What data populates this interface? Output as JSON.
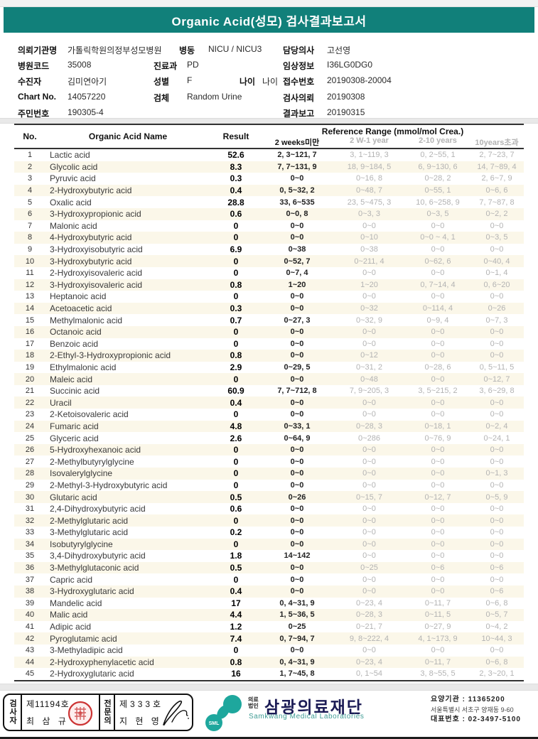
{
  "colors": {
    "teal": "#11807a",
    "logo-teal": "#1ea79d",
    "navy": "#1b1b55",
    "seal-red": "#cc3333",
    "row-alt": "#fbf7e9",
    "gray-txt": "#b3b3b3"
  },
  "title": "Organic Acid(성모) 검사결과보고서",
  "patient": {
    "fields": [
      {
        "label": "의뢰기관명",
        "value": "가톨릭학원의정부성모병원"
      },
      {
        "label": "병동",
        "value": "NICU / NICU3"
      },
      {
        "label": "담당의사",
        "value": "고선영"
      },
      {
        "label": "병원코드",
        "value": "35008"
      },
      {
        "label": "진료과",
        "value": "PD"
      },
      {
        "label": "임상정보",
        "value": "I36LG0DG0"
      },
      {
        "label": "수진자",
        "value": "김미연아기"
      },
      {
        "label": "성별",
        "value": "F"
      },
      {
        "label": "나이",
        "value": "나이"
      },
      {
        "label": "접수번호",
        "value": "20190308-20004"
      },
      {
        "label": "Chart No.",
        "value": "14057220"
      },
      {
        "label": "검체",
        "value": "Random Urine"
      },
      {
        "label": "검사의뢰",
        "value": "20190308"
      },
      {
        "label": "주민번호",
        "value": "190305-4"
      },
      {
        "label": "결과보고",
        "value": "20190315"
      }
    ]
  },
  "table": {
    "headers": {
      "no": "No.",
      "name": "Organic Acid Name",
      "result": "Result",
      "ref_title": "Reference Range (mmol/mol Crea.)",
      "sub1": "2 weeks미만",
      "sub2": "2 W-1 year",
      "sub3": "2-10 years",
      "sub4": "10years초과"
    },
    "rows": [
      [
        "1",
        "Lactic acid",
        "52.6",
        "2, 3~121, 7",
        "3, 1~119, 3",
        "0, 2~55, 1",
        "2, 7~23, 7"
      ],
      [
        "2",
        "Glycolic acid",
        "8.3",
        "7, 7~131, 9",
        "18, 9~184, 5",
        "6, 9~130, 6",
        "14, 7~89, 4"
      ],
      [
        "3",
        "Pyruvic acid",
        "0.3",
        "0~0",
        "0~16, 8",
        "0~28, 2",
        "2, 6~7, 9"
      ],
      [
        "4",
        "2-Hydroxybutyric acid",
        "0.4",
        "0, 5~32, 2",
        "0~48, 7",
        "0~55, 1",
        "0~6, 6"
      ],
      [
        "5",
        "Oxalic acid",
        "28.8",
        "33, 6~535",
        "23, 5~475, 3",
        "10, 6~258, 9",
        "7, 7~87, 8"
      ],
      [
        "6",
        "3-Hydroxypropionic acid",
        "0.6",
        "0~0, 8",
        "0~3, 3",
        "0~3, 5",
        "0~2, 2"
      ],
      [
        "7",
        "Malonic acid",
        "0",
        "0~0",
        "0~0",
        "0~0",
        "0~0"
      ],
      [
        "8",
        "4-Hydroxybutyric acid",
        "0",
        "0~0",
        "0~10",
        "0~0 ~ 4, 1",
        "0~3, 5"
      ],
      [
        "9",
        "3-Hydroxyisobutyric acid",
        "6.9",
        "0~38",
        "0~38",
        "0~0",
        "0~0"
      ],
      [
        "10",
        "3-Hydroxybutyric acid",
        "0",
        "0~52, 7",
        "0~211, 4",
        "0~62, 6",
        "0~40, 4"
      ],
      [
        "11",
        "2-Hydroxyisovaleric acid",
        "0",
        "0~7, 4",
        "0~0",
        "0~0",
        "0~1, 4"
      ],
      [
        "12",
        "3-Hydroxyisovaleric acid",
        "0.8",
        "1~20",
        "1~20",
        "0, 7~14, 4",
        "0, 6~20"
      ],
      [
        "13",
        "Heptanoic acid",
        "0",
        "0~0",
        "0~0",
        "0~0",
        "0~0"
      ],
      [
        "14",
        "Acetoacetic acid",
        "0.3",
        "0~0",
        "0~32",
        "0~114, 4",
        "0~26"
      ],
      [
        "15",
        "Methylmalonic acid",
        "0.7",
        "0~27, 3",
        "0~32, 9",
        "0~9, 4",
        "0~7, 3"
      ],
      [
        "16",
        "Octanoic acid",
        "0",
        "0~0",
        "0~0",
        "0~0",
        "0~0"
      ],
      [
        "17",
        "Benzoic acid",
        "0",
        "0~0",
        "0~0",
        "0~0",
        "0~0"
      ],
      [
        "18",
        "2-Ethyl-3-Hydroxypropionic acid",
        "0.8",
        "0~0",
        "0~12",
        "0~0",
        "0~0"
      ],
      [
        "19",
        "Ethylmalonic acid",
        "2.9",
        "0~29, 5",
        "0~31, 2",
        "0~28, 6",
        "0, 5~11, 5"
      ],
      [
        "20",
        "Maleic acid",
        "0",
        "0~0",
        "0~48",
        "0~0",
        "0~12, 7"
      ],
      [
        "21",
        "Succinic acid",
        "60.9",
        "7, 7~712, 8",
        "7, 9~205, 3",
        "3, 5~215, 2",
        "3, 6~29, 8"
      ],
      [
        "22",
        "Uracil",
        "0.4",
        "0~0",
        "0~0",
        "0~0",
        "0~0"
      ],
      [
        "23",
        "2-Ketoisovaleric acid",
        "0",
        "0~0",
        "0~0",
        "0~0",
        "0~0"
      ],
      [
        "24",
        "Fumaric acid",
        "4.8",
        "0~33, 1",
        "0~28, 3",
        "0~18, 1",
        "0~2, 4"
      ],
      [
        "25",
        "Glyceric acid",
        "2.6",
        "0~64, 9",
        "0~286",
        "0~76, 9",
        "0~24, 1"
      ],
      [
        "26",
        "5-Hydroxyhexanoic acid",
        "0",
        "0~0",
        "0~0",
        "0~0",
        "0~0"
      ],
      [
        "27",
        "2-Methylbutyrylglycine",
        "0",
        "0~0",
        "0~0",
        "0~0",
        "0~0"
      ],
      [
        "28",
        "Isovalerylglycine",
        "0",
        "0~0",
        "0~0",
        "0~0",
        "0~1, 3"
      ],
      [
        "29",
        "2-Methyl-3-Hydroxybutyric acid",
        "0",
        "0~0",
        "0~0",
        "0~0",
        "0~0"
      ],
      [
        "30",
        "Glutaric acid",
        "0.5",
        "0~26",
        "0~15, 7",
        "0~12, 7",
        "0~5, 9"
      ],
      [
        "31",
        "2,4-Dihydroxybutyric acid",
        "0.6",
        "0~0",
        "0~0",
        "0~0",
        "0~0"
      ],
      [
        "32",
        "2-Methylglutaric acid",
        "0",
        "0~0",
        "0~0",
        "0~0",
        "0~0"
      ],
      [
        "33",
        "3-Methylglutaric acid",
        "0.2",
        "0~0",
        "0~0",
        "0~0",
        "0~0"
      ],
      [
        "34",
        "Isobutyrylglycine",
        "0",
        "0~0",
        "0~0",
        "0~0",
        "0~0"
      ],
      [
        "35",
        "3,4-Dihydroxybutyric acid",
        "1.8",
        "14~142",
        "0~0",
        "0~0",
        "0~0"
      ],
      [
        "36",
        "3-Methylglutaconic acid",
        "0.5",
        "0~0",
        "0~25",
        "0~6",
        "0~6"
      ],
      [
        "37",
        "Capric acid",
        "0",
        "0~0",
        "0~0",
        "0~0",
        "0~0"
      ],
      [
        "38",
        "3-Hydroxyglutaric acid",
        "0.4",
        "0~0",
        "0~0",
        "0~0",
        "0~6"
      ],
      [
        "39",
        "Mandelic acid",
        "17",
        "0, 4~31, 9",
        "0~23, 4",
        "0~11, 7",
        "0~6, 8"
      ],
      [
        "40",
        "Malic acid",
        "4.4",
        "1, 5~36, 5",
        "0~28, 3",
        "0~11, 5",
        "0~5, 7"
      ],
      [
        "41",
        "Adipic acid",
        "1.2",
        "0~25",
        "0~21, 7",
        "0~27, 9",
        "0~4, 2"
      ],
      [
        "42",
        "Pyroglutamic acid",
        "7.4",
        "0, 7~94, 7",
        "9, 8~222, 4",
        "4, 1~173, 9",
        "10~44, 3"
      ],
      [
        "43",
        "3-Methyladipic acid",
        "0",
        "0~0",
        "0~0",
        "0~0",
        "0~0"
      ],
      [
        "44",
        "2-Hydroxyphenylacetic acid",
        "0.8",
        "0, 4~31, 9",
        "0~23, 4",
        "0~11, 7",
        "0~6, 8"
      ],
      [
        "45",
        "2-Hydroxyglutaric acid",
        "16",
        "1, 7~45, 8",
        "0, 1~54",
        "3, 8~55, 5",
        "2, 3~20, 1"
      ]
    ]
  },
  "footer": {
    "examiner": {
      "section_label": "검사자",
      "cert_no": "제11194호",
      "name": "최 삼 규"
    },
    "specialist": {
      "section_label": "전문의",
      "cert_no": "제333호",
      "name": "지 현 영"
    },
    "lab": {
      "org_type_line1": "의료",
      "org_type_line2": "법인",
      "name": "삼광의료재단",
      "name_en": "Samkwang Medical Laboratories",
      "logo_text": "SML",
      "care_org_no": "요양기관 : 11365200",
      "address": "서울특별시 서초구 양재동 9-60",
      "phone": "대표번호 : 02-3497-5100"
    }
  }
}
